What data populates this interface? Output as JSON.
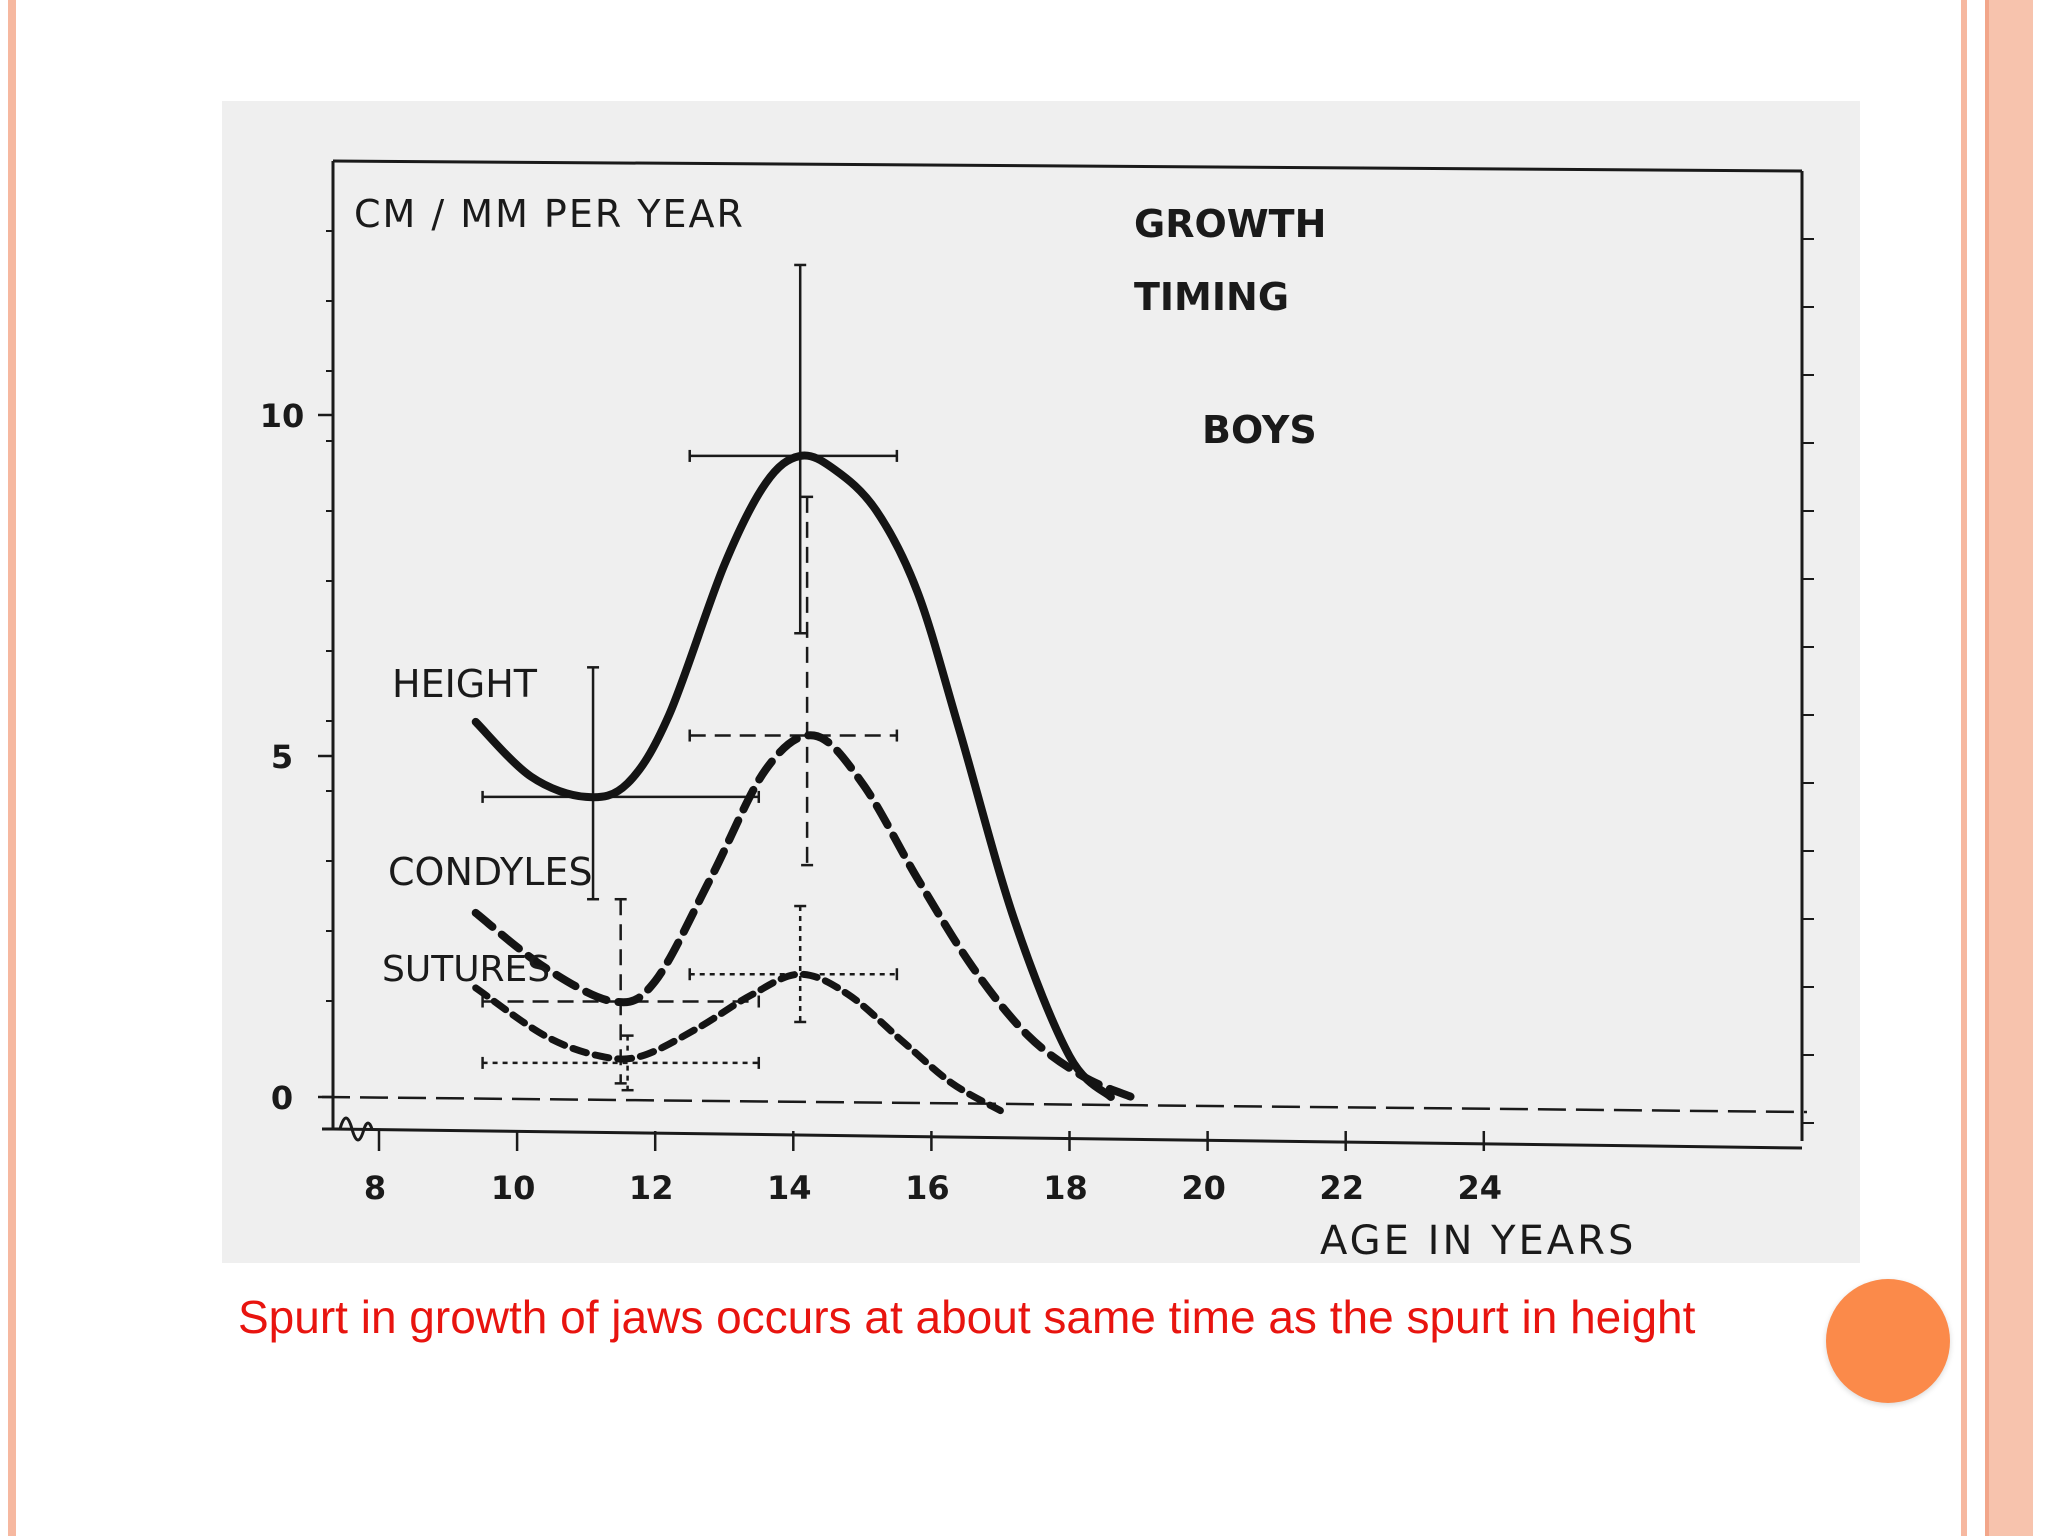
{
  "slide": {
    "caption": "Spurt in growth of jaws occurs at about same time as the spurt in height",
    "colors": {
      "caption": "#e8140f",
      "accent_orb": "#fb8a4a",
      "frame": "#f6b8a0"
    }
  },
  "chart_data": {
    "type": "line",
    "title_lines": [
      "GROWTH",
      "TIMING",
      "BOYS"
    ],
    "ylabel": "CM / MM PER YEAR",
    "xlabel": "AGE IN YEARS",
    "xlim": [
      7.4,
      24
    ],
    "ylim": [
      -0.6,
      13.5
    ],
    "x_ticks": [
      8,
      10,
      12,
      14,
      16,
      18,
      20,
      22,
      24
    ],
    "y_ticks": [
      0,
      5,
      10
    ],
    "grid": false,
    "series": [
      {
        "name": "HEIGHT",
        "style": "solid",
        "x": [
          9.4,
          10.2,
          11.0,
          11.6,
          12.2,
          13.0,
          13.6,
          14.1,
          14.6,
          15.2,
          15.8,
          16.4,
          17.2,
          18.0,
          18.6
        ],
        "y": [
          5.5,
          4.7,
          4.4,
          4.6,
          5.6,
          7.8,
          9.0,
          9.4,
          9.2,
          8.6,
          7.4,
          5.4,
          2.6,
          0.6,
          0.0
        ],
        "error_bars": [
          {
            "x": 11.1,
            "y": 4.4,
            "x_range": [
              9.5,
              13.5
            ],
            "y_range": [
              2.9,
              6.3
            ]
          },
          {
            "x": 14.1,
            "y": 9.4,
            "x_range": [
              12.5,
              15.5
            ],
            "y_range": [
              6.8,
              12.2
            ]
          }
        ]
      },
      {
        "name": "CONDYLES",
        "style": "dashed",
        "x": [
          9.4,
          10.4,
          11.4,
          12.0,
          12.8,
          13.6,
          14.3,
          15.0,
          15.8,
          16.6,
          17.4,
          18.2,
          18.9
        ],
        "y": [
          2.7,
          1.9,
          1.4,
          1.7,
          3.2,
          4.8,
          5.3,
          4.6,
          3.2,
          1.9,
          0.9,
          0.3,
          0.0
        ],
        "error_bars": [
          {
            "x": 11.5,
            "y": 1.4,
            "x_range": [
              9.5,
              13.5
            ],
            "y_range": [
              0.2,
              2.9
            ]
          },
          {
            "x": 14.2,
            "y": 5.3,
            "x_range": [
              12.5,
              15.5
            ],
            "y_range": [
              3.4,
              8.8
            ]
          }
        ]
      },
      {
        "name": "SUTURES",
        "style": "dashed",
        "x": [
          9.4,
          10.4,
          11.2,
          11.8,
          12.6,
          13.4,
          14.1,
          14.8,
          15.6,
          16.3,
          17.0
        ],
        "y": [
          1.6,
          0.9,
          0.6,
          0.6,
          1.0,
          1.5,
          1.8,
          1.5,
          0.8,
          0.2,
          -0.2
        ],
        "error_bars": [
          {
            "x": 11.6,
            "y": 0.5,
            "x_range": [
              9.5,
              13.5
            ],
            "y_range": [
              0.1,
              0.9
            ]
          },
          {
            "x": 14.1,
            "y": 1.8,
            "x_range": [
              12.5,
              15.5
            ],
            "y_range": [
              1.1,
              2.8
            ]
          }
        ]
      }
    ]
  }
}
